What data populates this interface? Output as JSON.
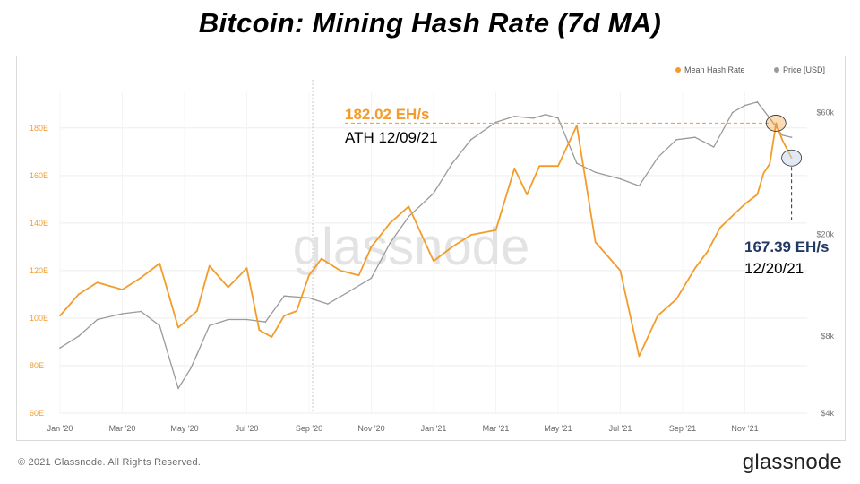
{
  "page": {
    "title": "Bitcoin: Mining Hash Rate (7d MA)",
    "copyright": "© 2021 Glassnode. All Rights Reserved.",
    "brand": "glassnode",
    "watermark": "glassnode"
  },
  "colors": {
    "hash": "#f39c2b",
    "price": "#9a9a9a",
    "ath_text": "#f39c2b",
    "latest_text": "#1f3864",
    "grid": "#ededed",
    "left_axis": "#f39c2b",
    "right_axis": "#777777"
  },
  "chart_data": {
    "type": "line",
    "title": "Bitcoin: Mining Hash Rate (7d MA)",
    "legend_position": "top-right",
    "grid": true,
    "x_ticks": [
      "Jan '20",
      "Mar '20",
      "May '20",
      "Jul '20",
      "Sep '20",
      "Nov '20",
      "Jan '21",
      "Mar '21",
      "May '21",
      "Jul '21",
      "Sep '21",
      "Nov '21"
    ],
    "y_left": {
      "label": "",
      "ticks": [
        "60E",
        "80E",
        "100E",
        "120E",
        "140E",
        "160E",
        "180E"
      ],
      "ylim": [
        60,
        195
      ]
    },
    "y_right": {
      "label": "",
      "scale": "log",
      "ticks": [
        "$4k",
        "$8k",
        "$20k",
        "$60k"
      ],
      "ylim": [
        4000,
        72000
      ]
    },
    "series": [
      {
        "name": "Mean Hash Rate",
        "axis": "left",
        "x": [
          0,
          0.3,
          0.6,
          1.0,
          1.3,
          1.6,
          1.9,
          2.2,
          2.4,
          2.7,
          3.0,
          3.2,
          3.4,
          3.6,
          3.8,
          4.0,
          4.2,
          4.5,
          4.8,
          5.0,
          5.3,
          5.6,
          6.0,
          6.3,
          6.6,
          7.0,
          7.3,
          7.5,
          7.7,
          8.0,
          8.3,
          8.6,
          9.0,
          9.3,
          9.6,
          9.9,
          10.2,
          10.4,
          10.6,
          10.8,
          11.0,
          11.2,
          11.3,
          11.4,
          11.5,
          11.6,
          11.75
        ],
        "y": [
          101,
          110,
          115,
          112,
          117,
          123,
          96,
          103,
          122,
          113,
          121,
          95,
          92,
          101,
          103,
          118,
          125,
          120,
          118,
          130,
          140,
          147,
          124,
          130,
          135,
          137,
          163,
          152,
          164,
          164,
          181,
          132,
          120,
          84,
          101,
          108,
          121,
          128,
          138,
          143,
          148,
          152,
          161,
          165,
          182.02,
          175,
          167.39
        ]
      },
      {
        "name": "Price [USD]",
        "axis": "right",
        "x": [
          0,
          0.3,
          0.6,
          1.0,
          1.3,
          1.6,
          1.9,
          2.1,
          2.2,
          2.4,
          2.7,
          3.0,
          3.3,
          3.6,
          4.0,
          4.3,
          4.6,
          5.0,
          5.3,
          5.6,
          6.0,
          6.3,
          6.6,
          7.0,
          7.3,
          7.6,
          7.8,
          8.0,
          8.3,
          8.6,
          9.0,
          9.3,
          9.6,
          9.9,
          10.2,
          10.5,
          10.8,
          11.0,
          11.2,
          11.4,
          11.6,
          11.75
        ],
        "y": [
          7200,
          8000,
          9300,
          9800,
          10000,
          8800,
          5000,
          6000,
          6800,
          8800,
          9300,
          9300,
          9100,
          11500,
          11300,
          10700,
          11800,
          13500,
          18500,
          23500,
          29000,
          38000,
          47000,
          55000,
          58000,
          57000,
          59000,
          57000,
          38000,
          35000,
          33000,
          31000,
          40000,
          47000,
          48000,
          44000,
          60000,
          64000,
          66000,
          57000,
          49000,
          48000
        ]
      }
    ],
    "annotations": [
      {
        "value": "182.02 EH/s",
        "label": "ATH 12/09/21",
        "x": 11.5,
        "y": 182.02
      },
      {
        "value": "167.39 EH/s",
        "label": "12/20/21",
        "x": 11.75,
        "y": 167.39
      }
    ]
  }
}
